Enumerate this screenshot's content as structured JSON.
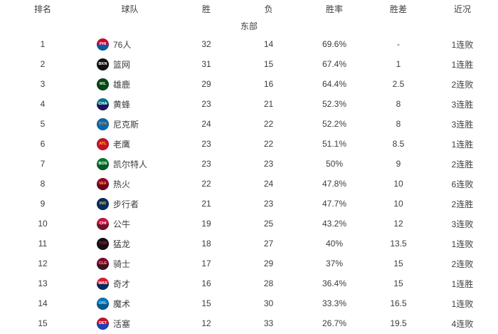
{
  "table": {
    "headers": {
      "rank": "排名",
      "team": "球队",
      "wins": "胜",
      "losses": "负",
      "pct": "胜率",
      "gb": "胜差",
      "streak": "近况"
    },
    "section": "东部",
    "text_color": "#3c3c3c",
    "rows": [
      {
        "rank": "1",
        "team": {
          "name": "76人",
          "abbr": "PHI",
          "logo_top": "#d50032",
          "logo_bottom": "#0b59a6",
          "logo_text": "#ffffff"
        },
        "wins": "32",
        "losses": "14",
        "pct": "69.6%",
        "gb": "-",
        "streak": "1连败"
      },
      {
        "rank": "2",
        "team": {
          "name": "篮网",
          "abbr": "BKN",
          "logo_top": "#111111",
          "logo_bottom": "#111111",
          "logo_text": "#ffffff"
        },
        "wins": "31",
        "losses": "15",
        "pct": "67.4%",
        "gb": "1",
        "streak": "1连胜"
      },
      {
        "rank": "3",
        "team": {
          "name": "雄鹿",
          "abbr": "MIL",
          "logo_top": "#00471b",
          "logo_bottom": "#00471b",
          "logo_text": "#eee1c6"
        },
        "wins": "29",
        "losses": "16",
        "pct": "64.4%",
        "gb": "2.5",
        "streak": "2连败"
      },
      {
        "rank": "4",
        "team": {
          "name": "黄蜂",
          "abbr": "CHA",
          "logo_top": "#00788c",
          "logo_bottom": "#1d1160",
          "logo_text": "#ffffff"
        },
        "wins": "23",
        "losses": "21",
        "pct": "52.3%",
        "gb": "8",
        "streak": "3连胜"
      },
      {
        "rank": "5",
        "team": {
          "name": "尼克斯",
          "abbr": "NYK",
          "logo_top": "#006bb6",
          "logo_bottom": "#006bb6",
          "logo_text": "#f58426"
        },
        "wins": "24",
        "losses": "22",
        "pct": "52.2%",
        "gb": "8",
        "streak": "3连胜"
      },
      {
        "rank": "6",
        "team": {
          "name": "老鹰",
          "abbr": "ATL",
          "logo_top": "#c8102e",
          "logo_bottom": "#c8102e",
          "logo_text": "#ffcd00"
        },
        "wins": "23",
        "losses": "22",
        "pct": "51.1%",
        "gb": "8.5",
        "streak": "1连胜"
      },
      {
        "rank": "7",
        "team": {
          "name": "凯尔特人",
          "abbr": "BOS",
          "logo_top": "#007a33",
          "logo_bottom": "#005c26",
          "logo_text": "#ffffff"
        },
        "wins": "23",
        "losses": "23",
        "pct": "50%",
        "gb": "9",
        "streak": "2连胜"
      },
      {
        "rank": "8",
        "team": {
          "name": "热火",
          "abbr": "MIA",
          "logo_top": "#98002e",
          "logo_bottom": "#6f0020",
          "logo_text": "#f9a01b"
        },
        "wins": "22",
        "losses": "24",
        "pct": "47.8%",
        "gb": "10",
        "streak": "6连败"
      },
      {
        "rank": "9",
        "team": {
          "name": "步行者",
          "abbr": "IND",
          "logo_top": "#002d62",
          "logo_bottom": "#002d62",
          "logo_text": "#fdbb30"
        },
        "wins": "21",
        "losses": "23",
        "pct": "47.7%",
        "gb": "10",
        "streak": "2连胜"
      },
      {
        "rank": "10",
        "team": {
          "name": "公牛",
          "abbr": "CHI",
          "logo_top": "#ce1141",
          "logo_bottom": "#7a0d27",
          "logo_text": "#ffffff"
        },
        "wins": "19",
        "losses": "25",
        "pct": "43.2%",
        "gb": "12",
        "streak": "3连败"
      },
      {
        "rank": "11",
        "team": {
          "name": "猛龙",
          "abbr": "TOR",
          "logo_top": "#121212",
          "logo_bottom": "#121212",
          "logo_text": "#ce1141"
        },
        "wins": "18",
        "losses": "27",
        "pct": "40%",
        "gb": "13.5",
        "streak": "1连败"
      },
      {
        "rank": "12",
        "team": {
          "name": "骑士",
          "abbr": "CLE",
          "logo_top": "#860038",
          "logo_bottom": "#3d1420",
          "logo_text": "#fdbb30"
        },
        "wins": "17",
        "losses": "29",
        "pct": "37%",
        "gb": "15",
        "streak": "2连败"
      },
      {
        "rank": "13",
        "team": {
          "name": "奇才",
          "abbr": "WAS",
          "logo_top": "#e31837",
          "logo_bottom": "#002b5c",
          "logo_text": "#ffffff"
        },
        "wins": "16",
        "losses": "28",
        "pct": "36.4%",
        "gb": "15",
        "streak": "1连胜"
      },
      {
        "rank": "14",
        "team": {
          "name": "魔术",
          "abbr": "ORL",
          "logo_top": "#0077c0",
          "logo_bottom": "#005a92",
          "logo_text": "#c4ced4"
        },
        "wins": "15",
        "losses": "30",
        "pct": "33.3%",
        "gb": "16.5",
        "streak": "1连败"
      },
      {
        "rank": "15",
        "team": {
          "name": "活塞",
          "abbr": "DET",
          "logo_top": "#c8102e",
          "logo_bottom": "#1d42ba",
          "logo_text": "#ffffff"
        },
        "wins": "12",
        "losses": "33",
        "pct": "26.7%",
        "gb": "19.5",
        "streak": "4连败"
      }
    ]
  }
}
